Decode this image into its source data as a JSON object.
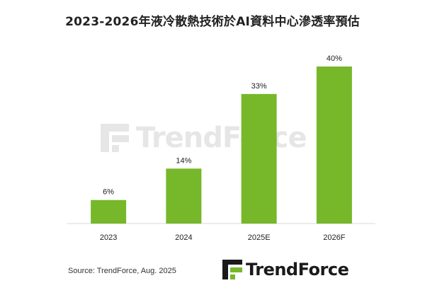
{
  "chart_data": {
    "type": "bar",
    "title": "2023-2026年液冷散熱技術於AI資料中心滲透率預估",
    "categories": [
      "2023",
      "2024",
      "2025E",
      "2026F"
    ],
    "values": [
      6,
      14,
      33,
      40
    ],
    "value_labels": [
      "6%",
      "14%",
      "33%",
      "40%"
    ],
    "ylim": [
      0,
      40
    ],
    "grid": false,
    "bar_color": "#76b82a",
    "axis_color": "#d9d9d9"
  },
  "source": "Source: TrendForce, Aug. 2025",
  "brand": {
    "name": "TrendForce",
    "icon": "trendforce-logo-icon",
    "accent_green": "#76b82a"
  },
  "watermark": {
    "text": "TrendForce"
  }
}
